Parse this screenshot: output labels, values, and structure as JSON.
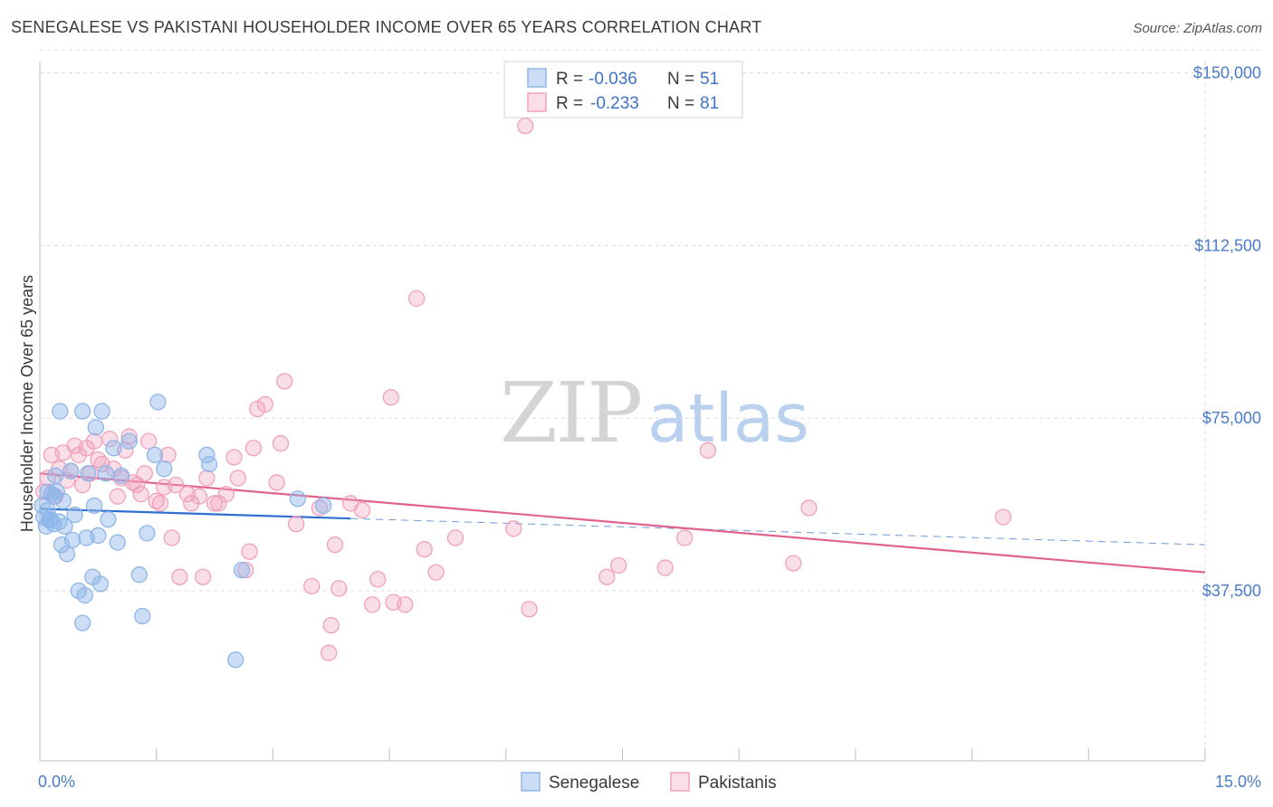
{
  "title": "SENEGALESE VS PAKISTANI HOUSEHOLDER INCOME OVER 65 YEARS CORRELATION CHART",
  "source": "Source: ZipAtlas.com",
  "watermark": {
    "zip": "ZIP",
    "atlas": "atlas"
  },
  "colors": {
    "blue": "#8fb6e8",
    "blue_fill": "rgba(143,182,232,0.45)",
    "blue_line": "#2f6fd0",
    "pink": "#f1a0bb",
    "pink_fill": "rgba(241,160,187,0.35)",
    "pink_line": "#e0628f",
    "axis_text": "#4a7cc9",
    "grid": "#dcdcdc"
  },
  "legend": {
    "rows": [
      {
        "r_label": "R = ",
        "r_value": "-0.036",
        "n_label": "N = ",
        "n_value": "51"
      },
      {
        "r_label": "R = ",
        "r_value": "-0.233",
        "n_label": "N = ",
        "n_value": "81"
      }
    ]
  },
  "bottom_legend": [
    "Senegalese",
    "Pakistanis"
  ],
  "chart_data": {
    "type": "scatter",
    "title": "SENEGALESE VS PAKISTANI HOUSEHOLDER INCOME OVER 65 YEARS CORRELATION CHART",
    "xlabel": "",
    "ylabel": "Householder Income Over 65 years",
    "xlim": [
      0,
      15
    ],
    "ylim": [
      0,
      155000
    ],
    "x_tick_labels": [
      "0.0%",
      "15.0%"
    ],
    "y_ticks": [
      37500,
      75000,
      112500,
      150000
    ],
    "y_tick_labels": [
      "$37,500",
      "$75,000",
      "$112,500",
      "$150,000"
    ],
    "grid": true,
    "series": [
      {
        "name": "Senegalese",
        "r": -0.036,
        "n": 51,
        "trend": {
          "x": [
            0.0,
            4.0
          ],
          "y": [
            55300,
            53200
          ],
          "dashed_to_x": 15.0,
          "dashed_end_y": 47500
        },
        "points": [
          [
            0.05,
            53500
          ],
          [
            0.08,
            51500
          ],
          [
            0.1,
            55000
          ],
          [
            0.12,
            52800
          ],
          [
            0.15,
            58500
          ],
          [
            0.18,
            52000
          ],
          [
            0.2,
            62500
          ],
          [
            0.22,
            59000
          ],
          [
            0.25,
            52500
          ],
          [
            0.28,
            47500
          ],
          [
            0.3,
            57000
          ],
          [
            0.32,
            51500
          ],
          [
            0.35,
            45500
          ],
          [
            0.4,
            63500
          ],
          [
            0.42,
            48500
          ],
          [
            0.45,
            54000
          ],
          [
            0.5,
            37500
          ],
          [
            0.55,
            30500
          ],
          [
            0.58,
            36500
          ],
          [
            0.6,
            49000
          ],
          [
            0.62,
            63000
          ],
          [
            0.68,
            40500
          ],
          [
            0.7,
            56000
          ],
          [
            0.72,
            73000
          ],
          [
            0.75,
            49500
          ],
          [
            0.78,
            39000
          ],
          [
            0.8,
            76500
          ],
          [
            0.85,
            63000
          ],
          [
            0.88,
            53000
          ],
          [
            0.95,
            68500
          ],
          [
            1.0,
            48000
          ],
          [
            1.05,
            62500
          ],
          [
            1.15,
            70000
          ],
          [
            1.28,
            41000
          ],
          [
            1.32,
            32000
          ],
          [
            1.38,
            50000
          ],
          [
            1.48,
            67000
          ],
          [
            1.52,
            78500
          ],
          [
            1.6,
            64000
          ],
          [
            2.15,
            67000
          ],
          [
            2.18,
            65000
          ],
          [
            2.6,
            42000
          ],
          [
            2.52,
            22500
          ],
          [
            3.32,
            57500
          ],
          [
            3.65,
            56000
          ],
          [
            0.26,
            76500
          ],
          [
            0.55,
            76500
          ],
          [
            0.03,
            56000
          ],
          [
            0.1,
            59000
          ],
          [
            0.18,
            58000
          ],
          [
            0.14,
            53000
          ]
        ]
      },
      {
        "name": "Pakistanis",
        "r": -0.233,
        "n": 81,
        "trend": {
          "x": [
            0.0,
            15.0
          ],
          "y": [
            63000,
            41500
          ]
        },
        "points": [
          [
            0.05,
            59000
          ],
          [
            0.1,
            62000
          ],
          [
            0.15,
            67000
          ],
          [
            0.2,
            58000
          ],
          [
            0.25,
            64000
          ],
          [
            0.3,
            67500
          ],
          [
            0.35,
            61500
          ],
          [
            0.4,
            63500
          ],
          [
            0.45,
            69000
          ],
          [
            0.5,
            67000
          ],
          [
            0.55,
            60500
          ],
          [
            0.6,
            68500
          ],
          [
            0.65,
            63000
          ],
          [
            0.7,
            70000
          ],
          [
            0.75,
            66000
          ],
          [
            0.8,
            65000
          ],
          [
            0.9,
            70500
          ],
          [
            0.95,
            64000
          ],
          [
            1.0,
            58000
          ],
          [
            1.05,
            62000
          ],
          [
            1.1,
            68000
          ],
          [
            1.15,
            71000
          ],
          [
            1.2,
            61000
          ],
          [
            1.25,
            60500
          ],
          [
            1.3,
            58500
          ],
          [
            1.35,
            63000
          ],
          [
            1.4,
            70000
          ],
          [
            1.5,
            57000
          ],
          [
            1.55,
            56500
          ],
          [
            1.6,
            60000
          ],
          [
            1.65,
            67000
          ],
          [
            1.7,
            49000
          ],
          [
            1.75,
            60500
          ],
          [
            1.8,
            40500
          ],
          [
            1.9,
            58500
          ],
          [
            1.95,
            56500
          ],
          [
            2.05,
            58000
          ],
          [
            2.1,
            40500
          ],
          [
            2.15,
            62000
          ],
          [
            2.25,
            56500
          ],
          [
            2.3,
            56500
          ],
          [
            2.4,
            58500
          ],
          [
            2.5,
            66500
          ],
          [
            2.55,
            62000
          ],
          [
            2.65,
            42000
          ],
          [
            2.7,
            46000
          ],
          [
            2.75,
            68500
          ],
          [
            2.8,
            77000
          ],
          [
            2.9,
            78000
          ],
          [
            3.05,
            61000
          ],
          [
            3.1,
            69500
          ],
          [
            3.15,
            83000
          ],
          [
            3.3,
            52000
          ],
          [
            3.5,
            38500
          ],
          [
            3.6,
            55500
          ],
          [
            3.8,
            47500
          ],
          [
            3.85,
            38000
          ],
          [
            3.75,
            30000
          ],
          [
            3.72,
            24000
          ],
          [
            4.0,
            56500
          ],
          [
            4.15,
            55000
          ],
          [
            4.28,
            34500
          ],
          [
            4.35,
            40000
          ],
          [
            4.55,
            35000
          ],
          [
            4.7,
            34500
          ],
          [
            4.85,
            101000
          ],
          [
            4.95,
            46500
          ],
          [
            5.1,
            41500
          ],
          [
            5.35,
            49000
          ],
          [
            6.1,
            51000
          ],
          [
            6.3,
            33500
          ],
          [
            6.25,
            138500
          ],
          [
            7.3,
            40500
          ],
          [
            7.45,
            43000
          ],
          [
            8.05,
            42500
          ],
          [
            8.3,
            49000
          ],
          [
            8.6,
            68000
          ],
          [
            9.7,
            43500
          ],
          [
            9.9,
            55500
          ],
          [
            12.4,
            53500
          ],
          [
            4.52,
            79500
          ]
        ]
      }
    ]
  }
}
